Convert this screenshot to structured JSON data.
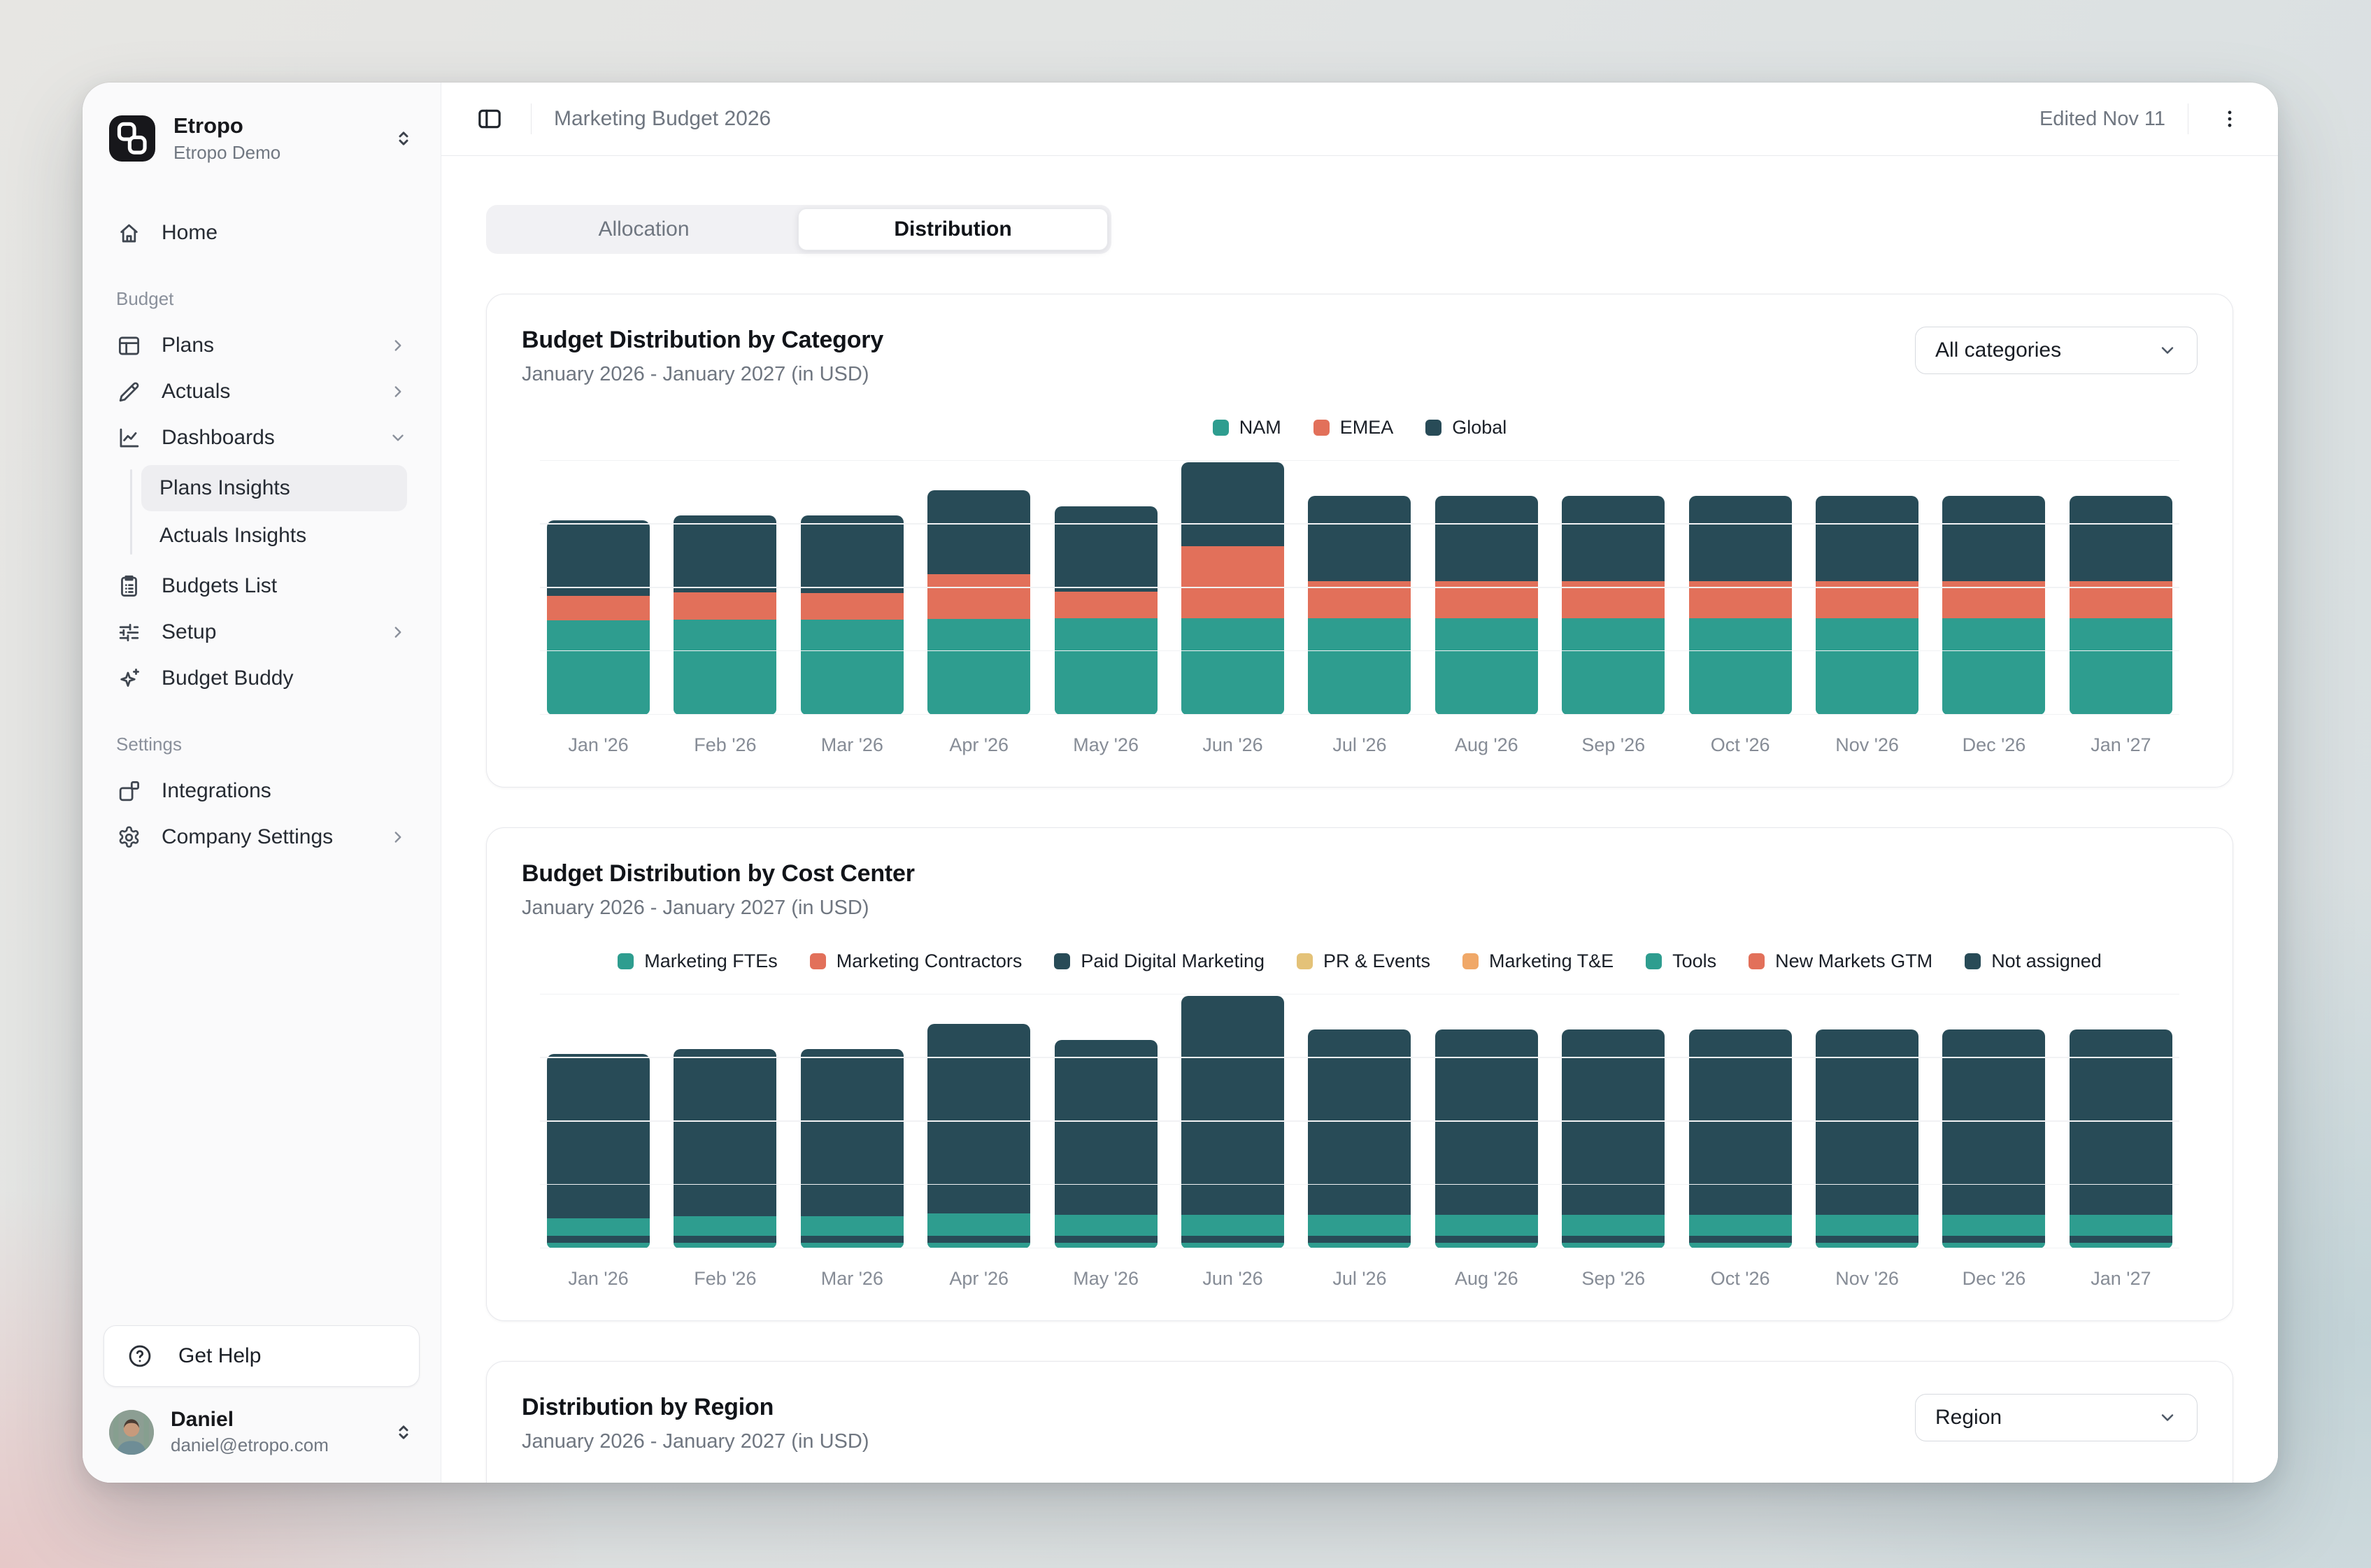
{
  "app": {
    "name": "Etropo",
    "workspace": "Etropo Demo"
  },
  "header": {
    "title": "Marketing Budget 2026",
    "edited": "Edited Nov 11"
  },
  "tabs": [
    {
      "label": "Allocation",
      "active": false
    },
    {
      "label": "Distribution",
      "active": true
    }
  ],
  "sidebar": {
    "sections": [
      {
        "label": "",
        "items": [
          {
            "label": "Home"
          }
        ]
      },
      {
        "label": "Budget",
        "items": [
          {
            "label": "Plans"
          },
          {
            "label": "Actuals"
          },
          {
            "label": "Dashboards",
            "expanded": true,
            "children": [
              {
                "label": "Plans Insights",
                "active": true
              },
              {
                "label": "Actuals Insights",
                "active": false
              }
            ]
          },
          {
            "label": "Budgets List"
          },
          {
            "label": "Setup"
          },
          {
            "label": "Budget Buddy"
          }
        ]
      },
      {
        "label": "Settings",
        "items": [
          {
            "label": "Integrations"
          },
          {
            "label": "Company Settings"
          }
        ]
      }
    ],
    "help_label": "Get Help",
    "user": {
      "name": "Daniel",
      "email": "daniel@etropo.com"
    }
  },
  "cards": [
    {
      "title": "Budget Distribution by Category",
      "subtitle": "January 2026 - January 2027 (in USD)",
      "dropdown": "All categories"
    },
    {
      "title": "Budget Distribution by Cost Center",
      "subtitle": "January 2026 - January 2027 (in USD)"
    },
    {
      "title": "Distribution by Region",
      "subtitle": "January 2026 - January 2027 (in USD)",
      "dropdown": "Region"
    }
  ],
  "chart_data": [
    {
      "type": "bar",
      "stacked": true,
      "title": "Budget Distribution by Category",
      "subtitle": "January 2026 - January 2027 (in USD)",
      "categories": [
        "Jan '26",
        "Feb '26",
        "Mar '26",
        "Apr '26",
        "May '26",
        "Jun '26",
        "Jul '26",
        "Aug '26",
        "Sep '26",
        "Oct '26",
        "Nov '26",
        "Dec '26",
        "Jan '27"
      ],
      "series": [
        {
          "name": "NAM",
          "color": "#2E9D8F",
          "values": [
            135,
            136,
            136,
            137,
            138,
            138,
            138,
            138,
            138,
            138,
            138,
            138,
            138
          ]
        },
        {
          "name": "EMEA",
          "color": "#E2705A",
          "values": [
            35,
            39,
            38,
            64,
            38,
            103,
            53,
            53,
            53,
            53,
            53,
            53,
            53
          ]
        },
        {
          "name": "Global",
          "color": "#284B57",
          "values": [
            108,
            110,
            111,
            120,
            122,
            120,
            122,
            122,
            122,
            122,
            122,
            122,
            122
          ]
        }
      ],
      "xlabel": "",
      "ylabel": "",
      "ylim": [
        0,
        363
      ],
      "y_axis": "unlabeled (values estimated from bar heights, relative USD units)",
      "grid": "horizontal",
      "legend_position": "top-center"
    },
    {
      "type": "bar",
      "stacked": true,
      "title": "Budget Distribution by Cost Center",
      "subtitle": "January 2026 - January 2027 (in USD)",
      "categories": [
        "Jan '26",
        "Feb '26",
        "Mar '26",
        "Apr '26",
        "May '26",
        "Jun '26",
        "Jul '26",
        "Aug '26",
        "Sep '26",
        "Oct '26",
        "Nov '26",
        "Dec '26",
        "Jan '27"
      ],
      "series": [
        {
          "name": "Marketing FTEs",
          "color": "#2E9D8F",
          "values": [
            8,
            8,
            8,
            8,
            8,
            8,
            8,
            8,
            8,
            8,
            8,
            8,
            8
          ]
        },
        {
          "name": "Marketing Contractors",
          "color": "#E2705A",
          "values": [
            0,
            0,
            0,
            0,
            0,
            0,
            0,
            0,
            0,
            0,
            0,
            0,
            0
          ]
        },
        {
          "name": "Paid Digital Marketing",
          "color": "#284B57",
          "values": [
            10,
            10,
            10,
            10,
            10,
            10,
            10,
            10,
            10,
            10,
            10,
            10,
            10
          ]
        },
        {
          "name": "PR & Events",
          "color": "#E4C278",
          "values": [
            0,
            0,
            0,
            0,
            0,
            0,
            0,
            0,
            0,
            0,
            0,
            0,
            0
          ]
        },
        {
          "name": "Marketing T&E",
          "color": "#F0A868",
          "values": [
            0,
            0,
            0,
            0,
            0,
            0,
            0,
            0,
            0,
            0,
            0,
            0,
            0
          ]
        },
        {
          "name": "Tools",
          "color": "#2E9D8F",
          "values": [
            25,
            28,
            28,
            32,
            30,
            30,
            30,
            30,
            30,
            30,
            30,
            30,
            30
          ]
        },
        {
          "name": "New Markets GTM",
          "color": "#E2705A",
          "values": [
            0,
            0,
            0,
            0,
            0,
            0,
            0,
            0,
            0,
            0,
            0,
            0,
            0
          ]
        },
        {
          "name": "Not assigned",
          "color": "#284B57",
          "values": [
            235,
            239,
            239,
            271,
            250,
            313,
            265,
            265,
            265,
            265,
            265,
            265,
            265
          ]
        }
      ],
      "xlabel": "",
      "ylabel": "",
      "ylim": [
        0,
        363
      ],
      "y_axis": "unlabeled (values estimated from bar heights, relative USD units)",
      "grid": "horizontal",
      "legend_position": "top-center"
    }
  ]
}
